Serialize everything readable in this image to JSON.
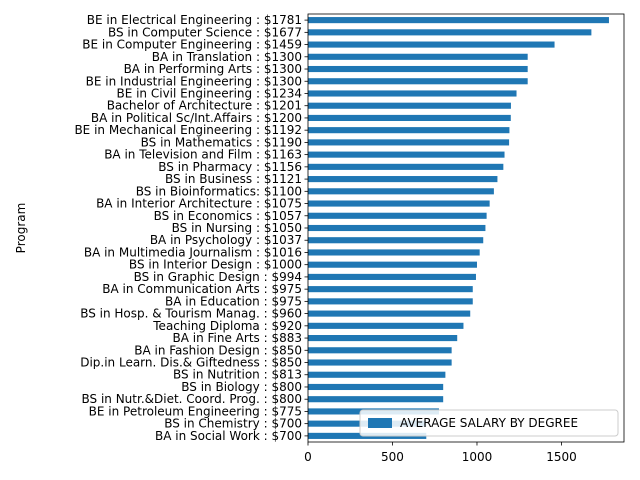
{
  "chart_data": {
    "type": "bar",
    "orientation": "horizontal",
    "categories": [
      "BE in Electrical Engineering : $1781",
      "BS in Computer Science : $1677",
      "BE in Computer Engineering : $1459",
      "BA in Translation : $1300",
      "BA in Performing Arts : $1300",
      "BE in Industrial Engineering : $1300",
      "BE in Civil Engineering : $1234",
      "Bachelor of Architecture : $1201",
      "BA in Political Sc/Int.Affairs : $1200",
      "BE in Mechanical Engineering : $1192",
      "BS in Mathematics : $1190",
      "BA in Television and Film : $1163",
      "BS in Pharmacy : $1156",
      "BS in Business : $1121",
      "BS in Bioinformatics: $1100",
      "BA in Interior Architecture : $1075",
      "BS in Economics : $1057",
      "BS in Nursing : $1050",
      "BA in Psychology : $1037",
      "BA in Multimedia Journalism : $1016",
      "BS in Interior Design : $1000",
      "BS in Graphic Design : $994",
      "BA in Communication Arts : $975",
      "BA in Education : $975",
      "BS in Hosp. & Tourism Manag. : $960",
      "Teaching Diploma : $920",
      "BA in Fine Arts : $883",
      "BA in Fashion Design : $850",
      "Dip.in Learn. Dis.& Giftedness : $850",
      "BS in Nutrition : $813",
      "BS in Biology : $800",
      "BS in Nutr.&Diet. Coord. Prog. : $800",
      "BE in Petroleum Engineering : $775",
      "BS in Chemistry : $700",
      "BA in Social Work : $700"
    ],
    "series": [
      {
        "name": "AVERAGE SALARY BY DEGREE",
        "values": [
          1781,
          1677,
          1459,
          1300,
          1300,
          1300,
          1234,
          1201,
          1200,
          1192,
          1190,
          1163,
          1156,
          1121,
          1100,
          1075,
          1057,
          1050,
          1037,
          1016,
          1000,
          994,
          975,
          975,
          960,
          920,
          883,
          850,
          850,
          813,
          800,
          800,
          775,
          700,
          700
        ]
      }
    ],
    "title": "",
    "xlabel": "",
    "ylabel": "Program",
    "xlim": [
      0,
      1870
    ],
    "xticks": [
      0,
      500,
      1000,
      1500
    ],
    "grid": false,
    "legend_position": "lower-right",
    "bar_color": "#1f77b4"
  }
}
